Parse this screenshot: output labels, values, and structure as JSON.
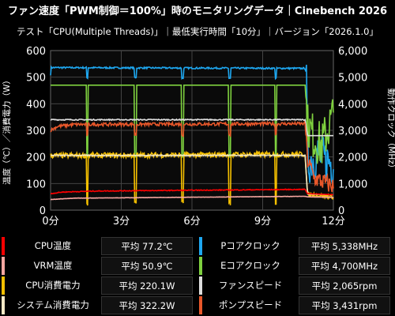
{
  "title": "ファン速度「PWM制御＝100%」時のモニタリングデータ｜Cinebench 2026",
  "subtitle": "テスト「CPU(Multiple Threads)」｜最低実行時間「10分」｜バージョン「2026.1.0」",
  "chart_data": {
    "type": "line",
    "x_range": [
      0,
      12
    ],
    "x_ticks": [
      "0分",
      "3分",
      "6分",
      "9分",
      "12分"
    ],
    "y_left": {
      "label": "温度（℃）／消費電力（W）",
      "range": [
        0,
        600
      ],
      "ticks": [
        "0",
        "100",
        "200",
        "300",
        "400",
        "500",
        "600"
      ]
    },
    "y_right": {
      "label": "動作クロック（MHz）",
      "range": [
        0,
        6000
      ],
      "ticks": [
        "0",
        "1,000",
        "2,000",
        "3,000",
        "4,000",
        "5,000",
        "6,000"
      ]
    },
    "grid": true,
    "series": [
      {
        "name": "Pコアクロック",
        "axis": "right",
        "color": "#1ea7f0",
        "points": [
          [
            0,
            5100
          ],
          [
            0.02,
            5360
          ],
          [
            10.8,
            5330
          ],
          [
            10.85,
            5150
          ],
          [
            10.9,
            1800
          ],
          [
            11.3,
            2100
          ],
          [
            11.6,
            1900
          ],
          [
            12,
            1800
          ]
        ]
      },
      {
        "name": "Eコアクロック",
        "axis": "right",
        "color": "#7fd13f",
        "points": [
          [
            0,
            4700
          ],
          [
            10.8,
            4700
          ],
          [
            10.9,
            3200
          ],
          [
            11.2,
            2700
          ],
          [
            11.5,
            2400
          ],
          [
            12,
            3600
          ]
        ]
      },
      {
        "name": "ファンスピード",
        "axis": "left",
        "color": "#dddddd",
        "points": [
          [
            0,
            340
          ],
          [
            10.8,
            340
          ],
          [
            10.9,
            280
          ],
          [
            12,
            280
          ]
        ]
      },
      {
        "name": "CPU温度",
        "axis": "left",
        "color": "#e8572a",
        "points": [
          [
            0,
            300
          ],
          [
            0.3,
            315
          ],
          [
            1,
            322
          ],
          [
            10.8,
            325
          ],
          [
            10.9,
            190
          ],
          [
            11.2,
            120
          ],
          [
            12,
            90
          ]
        ]
      },
      {
        "name": "CPU消費電力",
        "axis": "left",
        "color": "#f5c000",
        "points": [
          [
            0,
            205
          ],
          [
            10.8,
            210
          ],
          [
            10.9,
            60
          ],
          [
            12,
            50
          ]
        ]
      },
      {
        "name": "システム消費電力",
        "axis": "left",
        "color": "#f6e9c6",
        "points": [
          [
            0,
            206
          ],
          [
            10.8,
            206
          ],
          [
            10.9,
            60
          ],
          [
            12,
            58
          ]
        ]
      },
      {
        "name": "VRM温度",
        "axis": "left",
        "color": "#ff0000",
        "points": [
          [
            0,
            62
          ],
          [
            0.5,
            68
          ],
          [
            2,
            72
          ],
          [
            10.8,
            78
          ],
          [
            10.9,
            62
          ],
          [
            12,
            58
          ]
        ]
      },
      {
        "name": "VRM温度(薄)",
        "axis": "left",
        "color": "#f7a6a0",
        "points": [
          [
            0,
            40
          ],
          [
            1,
            45
          ],
          [
            10.8,
            52
          ],
          [
            10.9,
            50
          ],
          [
            12,
            48
          ]
        ]
      }
    ],
    "dips_at_minutes": [
      1.55,
      3.6,
      5.6,
      7.6,
      9.55
    ]
  },
  "legend": [
    {
      "name": "CPU温度",
      "avg": "平均 77.2℃",
      "color": "#ff0000"
    },
    {
      "name": "Pコアクロック",
      "avg": "平均 5,338MHz",
      "color": "#1ea7f0"
    },
    {
      "name": "VRM温度",
      "avg": "平均 50.9℃",
      "color": "#f7a6a0"
    },
    {
      "name": "Eコアクロック",
      "avg": "平均 4,700MHz",
      "color": "#7fd13f"
    },
    {
      "name": "CPU消費電力",
      "avg": "平均 220.1W",
      "color": "#f5c000"
    },
    {
      "name": "ファンスピード",
      "avg": "平均 2,065rpm",
      "color": "#dddddd"
    },
    {
      "name": "システム消費電力",
      "avg": "平均 322.2W",
      "color": "#f6e9c6"
    },
    {
      "name": "ポンプスピード",
      "avg": "平均 3,431rpm",
      "color": "#e8572a"
    }
  ]
}
